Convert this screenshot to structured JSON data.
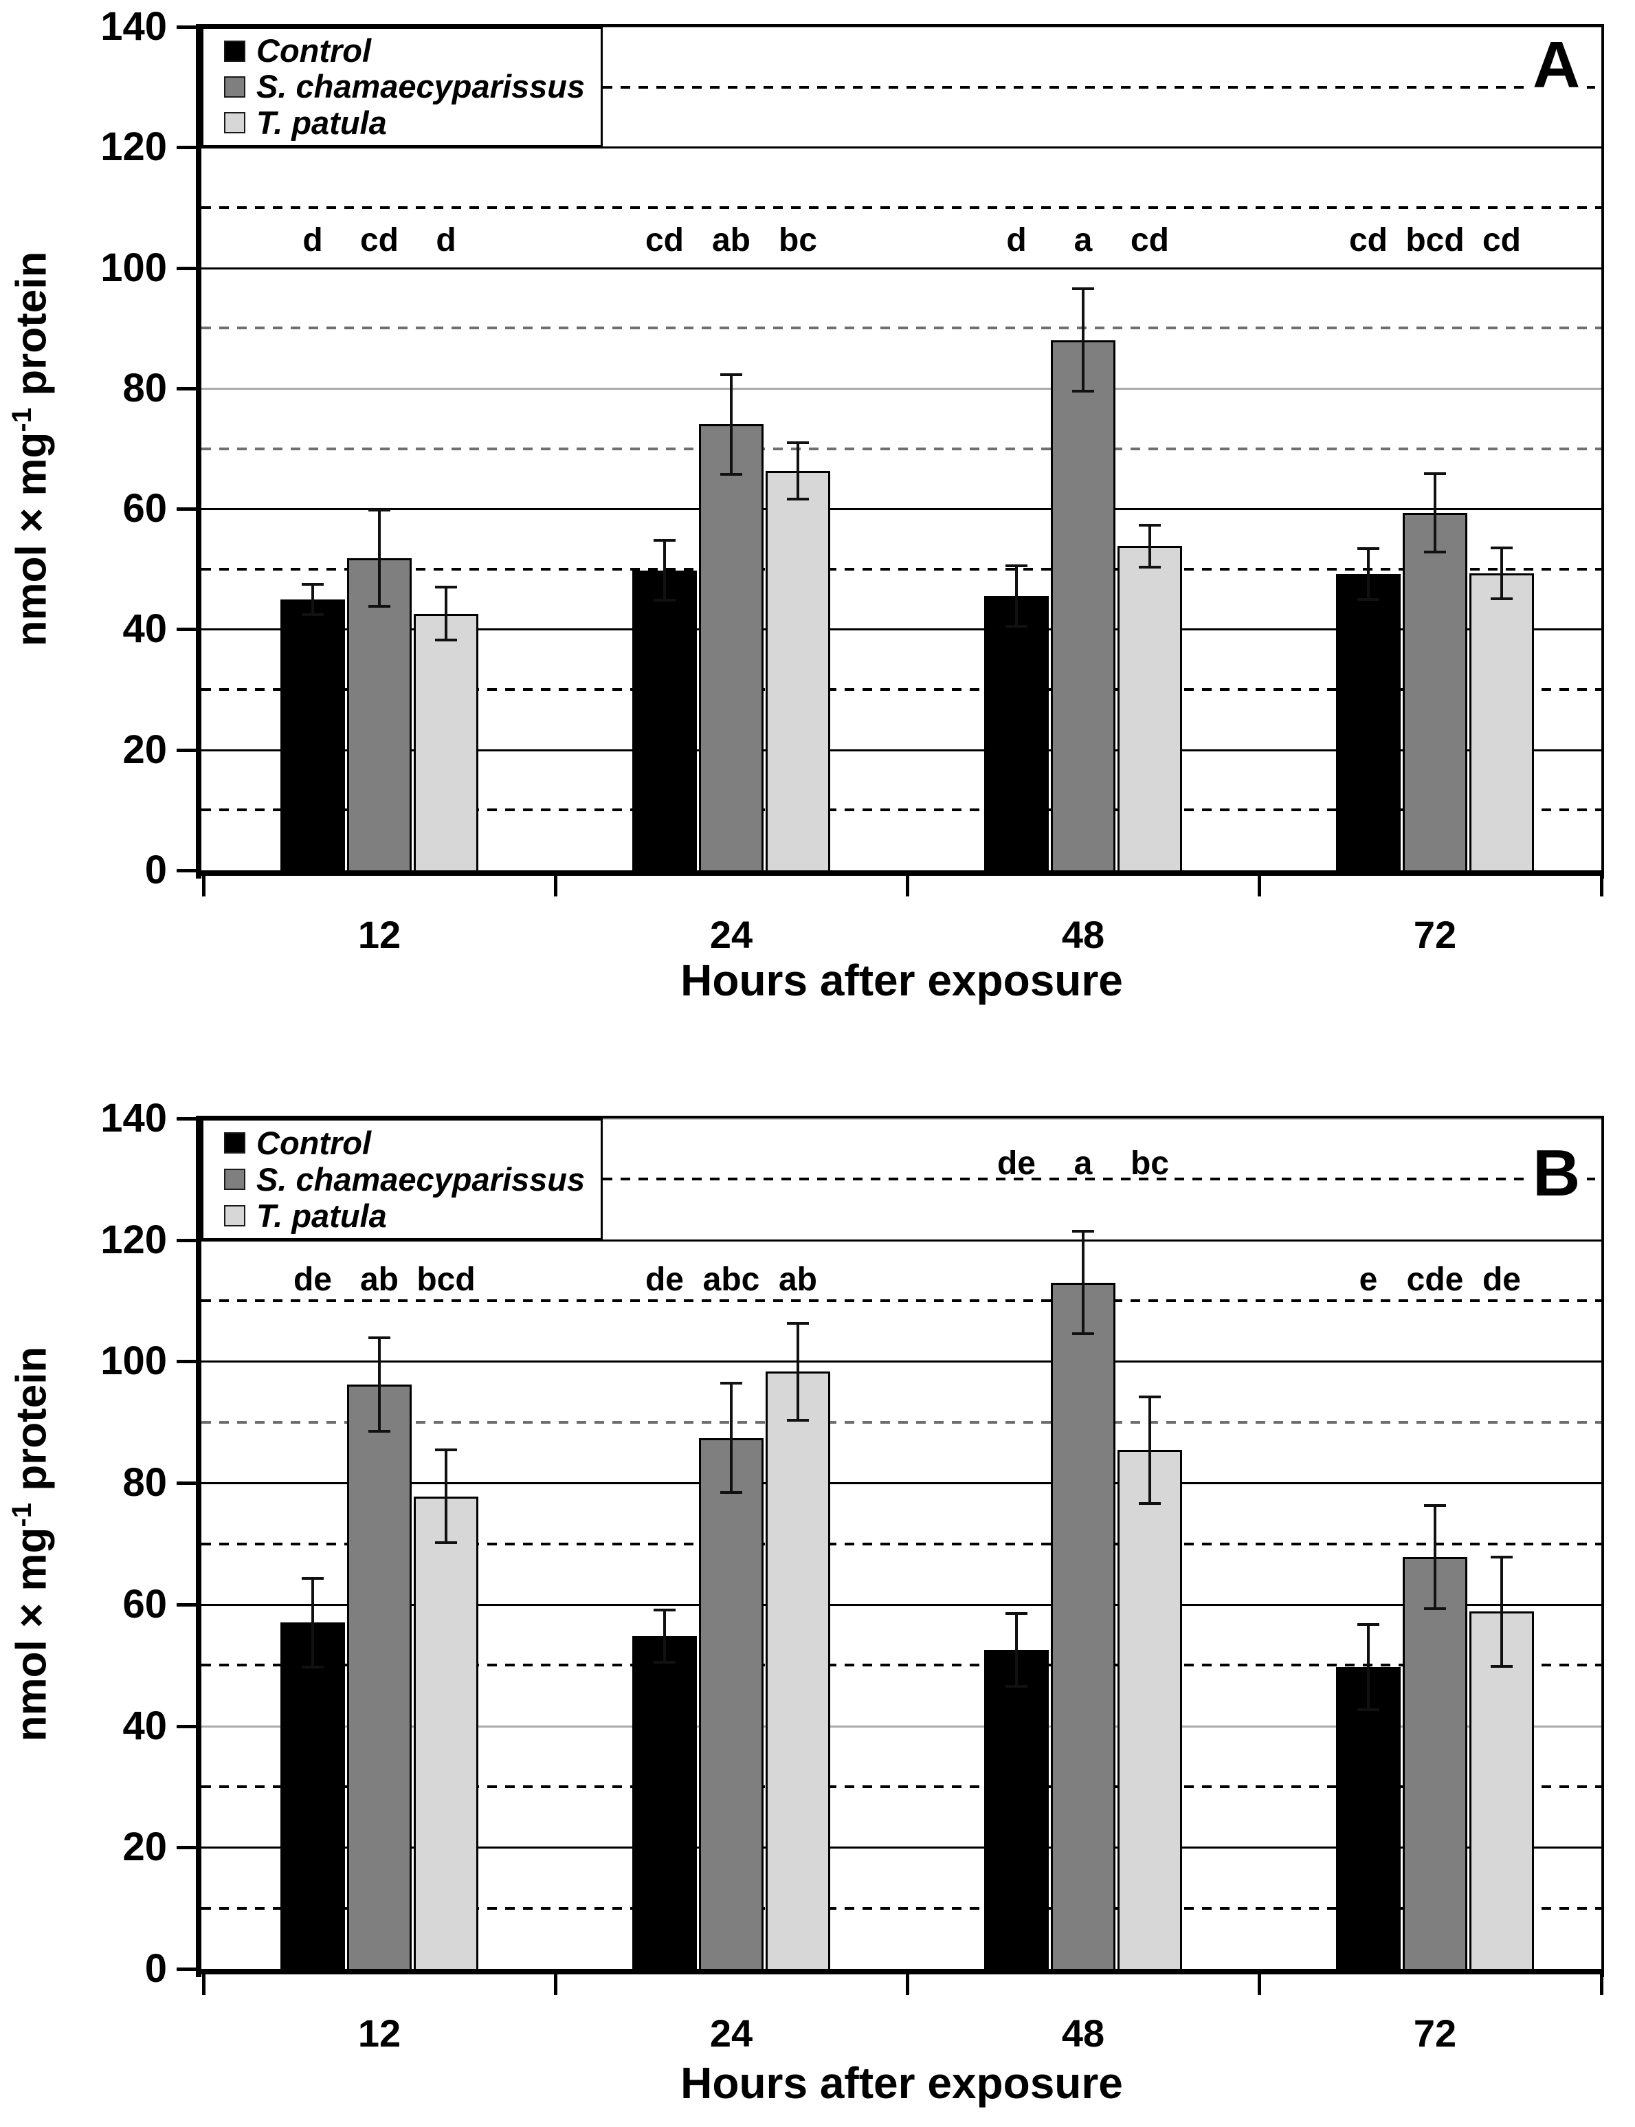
{
  "figure_title": "",
  "chart_data": [
    {
      "type": "bar",
      "panel_label": "A",
      "categories": [
        "12",
        "24",
        "48",
        "72"
      ],
      "xlabel": "Hours after exposure",
      "ylabel": {
        "prefix": "nmol × mg",
        "sup": "-1",
        "suffix": " protein"
      },
      "ylim": [
        0,
        140
      ],
      "ytick_step": 20,
      "grid": "solid lines every 20, dashed lines every 10",
      "legend_position": "top-left",
      "series": [
        {
          "name": "Control",
          "color": "#000000",
          "values": [
            45.0,
            49.8,
            45.5,
            49.2
          ],
          "errors": [
            2.5,
            5.0,
            5.0,
            4.2
          ],
          "letters": [
            "d",
            "cd",
            "d",
            "cd"
          ]
        },
        {
          "name": "S. chamaecyparissus",
          "color": "#7f7f7f",
          "values": [
            51.8,
            74.0,
            88.0,
            59.3
          ],
          "errors": [
            8.0,
            8.3,
            8.5,
            6.5
          ],
          "letters": [
            "cd",
            "ab",
            "a",
            "bcd"
          ]
        },
        {
          "name": "T. patula",
          "color": "#d7d7d7",
          "values": [
            42.6,
            66.3,
            53.8,
            49.3
          ],
          "errors": [
            4.4,
            4.7,
            3.5,
            4.2
          ],
          "letters": [
            "d",
            "bc",
            "cd",
            "cd"
          ]
        }
      ],
      "letter_rows": [
        {
          "group": "12",
          "labels": [
            "d",
            "cd",
            "d"
          ],
          "raised": false
        },
        {
          "group": "24",
          "labels": [
            "cd",
            "ab",
            "bc"
          ],
          "raised": false
        },
        {
          "group": "48",
          "labels": [
            "d",
            "a",
            "cd"
          ],
          "raised": false
        },
        {
          "group": "72",
          "labels": [
            "cd",
            "bcd",
            "cd"
          ],
          "raised": false
        }
      ],
      "legend": {
        "items": [
          {
            "label": "Control",
            "color": "#000000"
          },
          {
            "label": "S. chamaecyparissus",
            "color": "#7f7f7f"
          },
          {
            "label": "T. patula",
            "color": "#d7d7d7"
          }
        ]
      }
    },
    {
      "type": "bar",
      "panel_label": "B",
      "categories": [
        "12",
        "24",
        "48",
        "72"
      ],
      "xlabel": "Hours after exposure",
      "ylabel": {
        "prefix": "nmol × mg",
        "sup": "-1",
        "suffix": " protein"
      },
      "ylim": [
        0,
        140
      ],
      "ytick_step": 20,
      "grid": "solid lines every 20, dashed lines every 10",
      "legend_position": "top-left",
      "series": [
        {
          "name": "Control",
          "color": "#000000",
          "values": [
            57.0,
            54.8,
            52.5,
            49.7
          ],
          "errors": [
            7.3,
            4.3,
            6.0,
            7.0
          ],
          "letters": [
            "de",
            "de",
            "de",
            "e"
          ]
        },
        {
          "name": "S. chamaecyparissus",
          "color": "#7f7f7f",
          "values": [
            96.2,
            87.4,
            113.0,
            67.8
          ],
          "errors": [
            7.7,
            9.0,
            8.4,
            8.5
          ],
          "letters": [
            "ab",
            "abc",
            "a",
            "cde"
          ]
        },
        {
          "name": "T. patula",
          "color": "#d7d7d7",
          "values": [
            77.8,
            98.3,
            85.4,
            58.8
          ],
          "errors": [
            7.6,
            8.0,
            8.8,
            9.0
          ],
          "letters": [
            "bcd",
            "ab",
            "bc",
            "de"
          ]
        }
      ],
      "letter_rows": [
        {
          "group": "12",
          "labels": [
            "de",
            "ab",
            "bcd"
          ],
          "raised": false
        },
        {
          "group": "24",
          "labels": [
            "de",
            "abc",
            "ab"
          ],
          "raised": false
        },
        {
          "group": "48",
          "labels": [
            "de",
            "a",
            "bc"
          ],
          "raised": true
        },
        {
          "group": "72",
          "labels": [
            "e",
            "cde",
            "de"
          ],
          "raised": false
        }
      ],
      "legend": {
        "items": [
          {
            "label": "Control",
            "color": "#000000"
          },
          {
            "label": "S. chamaecyparissus",
            "color": "#7f7f7f"
          },
          {
            "label": "T. patula",
            "color": "#d7d7d7"
          }
        ]
      }
    }
  ]
}
